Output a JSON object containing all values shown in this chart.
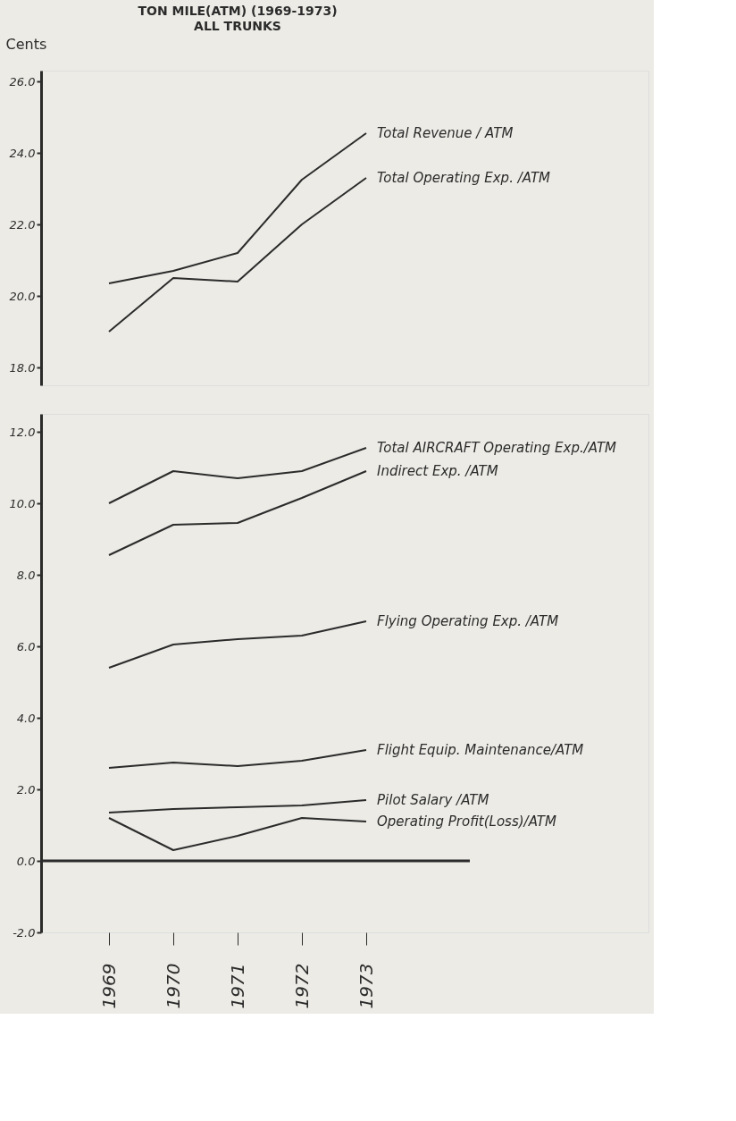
{
  "chart_data": [
    {
      "type": "line",
      "title": "TON MILE(ATM) (1969-1973)",
      "subtitle": "ALL TRUNKS",
      "ylabel": "Cents",
      "categories": [
        "1969",
        "1970",
        "1971",
        "1972",
        "1973"
      ],
      "series": [
        {
          "name": "Total Revenue / ATM",
          "color": "#2b2b2b",
          "values": [
            20.35,
            20.7,
            21.2,
            23.25,
            24.55
          ]
        },
        {
          "name": "Total Operating Exp. /ATM",
          "color": "#2b2b2b",
          "values": [
            19.0,
            20.5,
            20.4,
            22.0,
            23.3
          ]
        }
      ],
      "ylim": [
        17.5,
        26.3
      ],
      "yticks": [
        {
          "value": 18,
          "label": "18.0"
        },
        {
          "value": 20,
          "label": "20.0"
        },
        {
          "value": 22,
          "label": "22.0"
        },
        {
          "value": 24,
          "label": "24.0"
        },
        {
          "value": 26,
          "label": "26.0"
        }
      ],
      "tick_labels": "y",
      "grid": false,
      "legend": false,
      "line_style": "solid",
      "marker": "none"
    },
    {
      "type": "line",
      "categories": [
        "1969",
        "1970",
        "1971",
        "1972",
        "1973"
      ],
      "series": [
        {
          "name": "Total AIRCRAFT Operating Exp./ATM",
          "color": "#2b2b2b",
          "values": [
            10.0,
            10.9,
            10.7,
            10.9,
            11.55
          ]
        },
        {
          "name": "Indirect Exp. /ATM",
          "color": "#2b2b2b",
          "values": [
            8.55,
            9.4,
            9.45,
            10.15,
            10.9
          ]
        },
        {
          "name": "Flying Operating Exp. /ATM",
          "color": "#2b2b2b",
          "values": [
            5.4,
            6.05,
            6.2,
            6.3,
            6.7
          ]
        },
        {
          "name": "Flight Equip. Maintenance/ATM",
          "color": "#2b2b2b",
          "values": [
            2.6,
            2.75,
            2.65,
            2.8,
            3.1
          ]
        },
        {
          "name": "Pilot Salary /ATM",
          "color": "#2b2b2b",
          "values": [
            1.35,
            1.45,
            1.5,
            1.55,
            1.7
          ]
        },
        {
          "name": "Operating Profit(Loss)/ATM",
          "color": "#2b2b2b",
          "values": [
            1.2,
            0.3,
            0.7,
            1.2,
            1.1
          ]
        }
      ],
      "ylim": [
        -2,
        12.5
      ],
      "yticks": [
        {
          "value": -2,
          "label": "-2.0"
        },
        {
          "value": 0,
          "label": "0.0"
        },
        {
          "value": 2,
          "label": "2.0"
        },
        {
          "value": 4,
          "label": "4.0"
        },
        {
          "value": 6,
          "label": "6.0"
        },
        {
          "value": 8,
          "label": "8.0"
        },
        {
          "value": 10,
          "label": "10.0"
        },
        {
          "value": 12,
          "label": "12.0"
        }
      ],
      "ref_lines": [
        {
          "axis": "y",
          "value": 0,
          "label": null
        }
      ],
      "grid": false,
      "legend": false,
      "line_style": "solid",
      "marker": "none"
    }
  ]
}
